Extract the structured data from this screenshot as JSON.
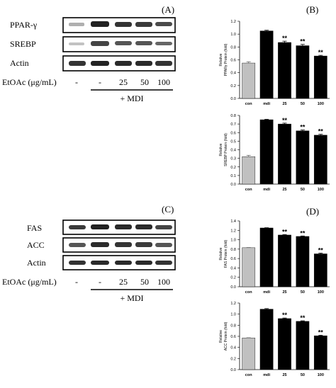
{
  "panels": {
    "a": {
      "label": "(A)"
    },
    "b": {
      "label": "(B)"
    },
    "c": {
      "label": "(C)"
    },
    "d": {
      "label": "(D)"
    }
  },
  "blot_a": {
    "bands": [
      "PPAR-γ",
      "SREBP",
      "Actin"
    ],
    "treatment_label": "EtOAc (μg/mL)",
    "lane_labels": [
      "-",
      "-",
      "25",
      "50",
      "100"
    ],
    "mdi_label": "+ MDI"
  },
  "blot_c": {
    "bands": [
      "FAS",
      "ACC",
      "Actin"
    ],
    "treatment_label": "EtOAc (μg/mL)",
    "lane_labels": [
      "-",
      "-",
      "25",
      "50",
      "100"
    ],
    "mdi_label": "+ MDI"
  },
  "colors": {
    "control_bar": "#c0c0c0",
    "treated_bar": "#000000"
  },
  "chart_data": [
    {
      "id": "pparg",
      "type": "bar",
      "ylabel_line1": "Relative",
      "ylabel_line2": "PPARγ Protein (fold)",
      "categories": [
        "con",
        "mdi",
        "25",
        "50",
        "100"
      ],
      "values": [
        0.55,
        1.05,
        0.87,
        0.82,
        0.66
      ],
      "errors": [
        0.02,
        0.01,
        0.02,
        0.02,
        0.01
      ],
      "significance": [
        "",
        "",
        "**",
        "**",
        "**"
      ],
      "ylim": [
        0,
        1.2
      ],
      "yticks": [
        "0.0",
        "0.2",
        "0.4",
        "0.6",
        "0.8",
        "1.0",
        "1.2"
      ]
    },
    {
      "id": "srebp",
      "type": "bar",
      "ylabel_line1": "Relative",
      "ylabel_line2": "SREBP Protein (fold)",
      "categories": [
        "con",
        "mdi",
        "25",
        "50",
        "100"
      ],
      "values": [
        0.32,
        0.75,
        0.7,
        0.62,
        0.57
      ],
      "errors": [
        0.015,
        0.005,
        0.01,
        0.01,
        0.01
      ],
      "significance": [
        "",
        "",
        "**",
        "**",
        "**"
      ],
      "ylim": [
        0,
        0.8
      ],
      "yticks": [
        "0.0",
        "0.1",
        "0.2",
        "0.3",
        "0.4",
        "0.5",
        "0.6",
        "0.7",
        "0.8"
      ]
    },
    {
      "id": "fas",
      "type": "bar",
      "ylabel_line1": "Relative",
      "ylabel_line2": "FAS Protein (fold)",
      "categories": [
        "con",
        "mdi",
        "25",
        "50",
        "100"
      ],
      "values": [
        0.83,
        1.25,
        1.1,
        1.07,
        0.7
      ],
      "errors": [
        0.005,
        0.005,
        0.01,
        0.01,
        0.015
      ],
      "significance": [
        "",
        "",
        "**",
        "**",
        "**"
      ],
      "ylim": [
        0,
        1.4
      ],
      "yticks": [
        "0.0",
        "0.2",
        "0.4",
        "0.6",
        "0.8",
        "1.0",
        "1.2",
        "1.4"
      ]
    },
    {
      "id": "acc",
      "type": "bar",
      "ylabel_line1": "Relative",
      "ylabel_line2": "ACC Protein (fold)",
      "categories": [
        "con",
        "mdi",
        "25",
        "50",
        "100"
      ],
      "values": [
        0.57,
        1.09,
        0.92,
        0.87,
        0.61
      ],
      "errors": [
        0.005,
        0.01,
        0.01,
        0.01,
        0.01
      ],
      "significance": [
        "",
        "",
        "**",
        "**",
        "**"
      ],
      "ylim": [
        0,
        1.2
      ],
      "yticks": [
        "0.0",
        "0.2",
        "0.4",
        "0.6",
        "0.8",
        "1.0",
        "1.2"
      ]
    }
  ]
}
